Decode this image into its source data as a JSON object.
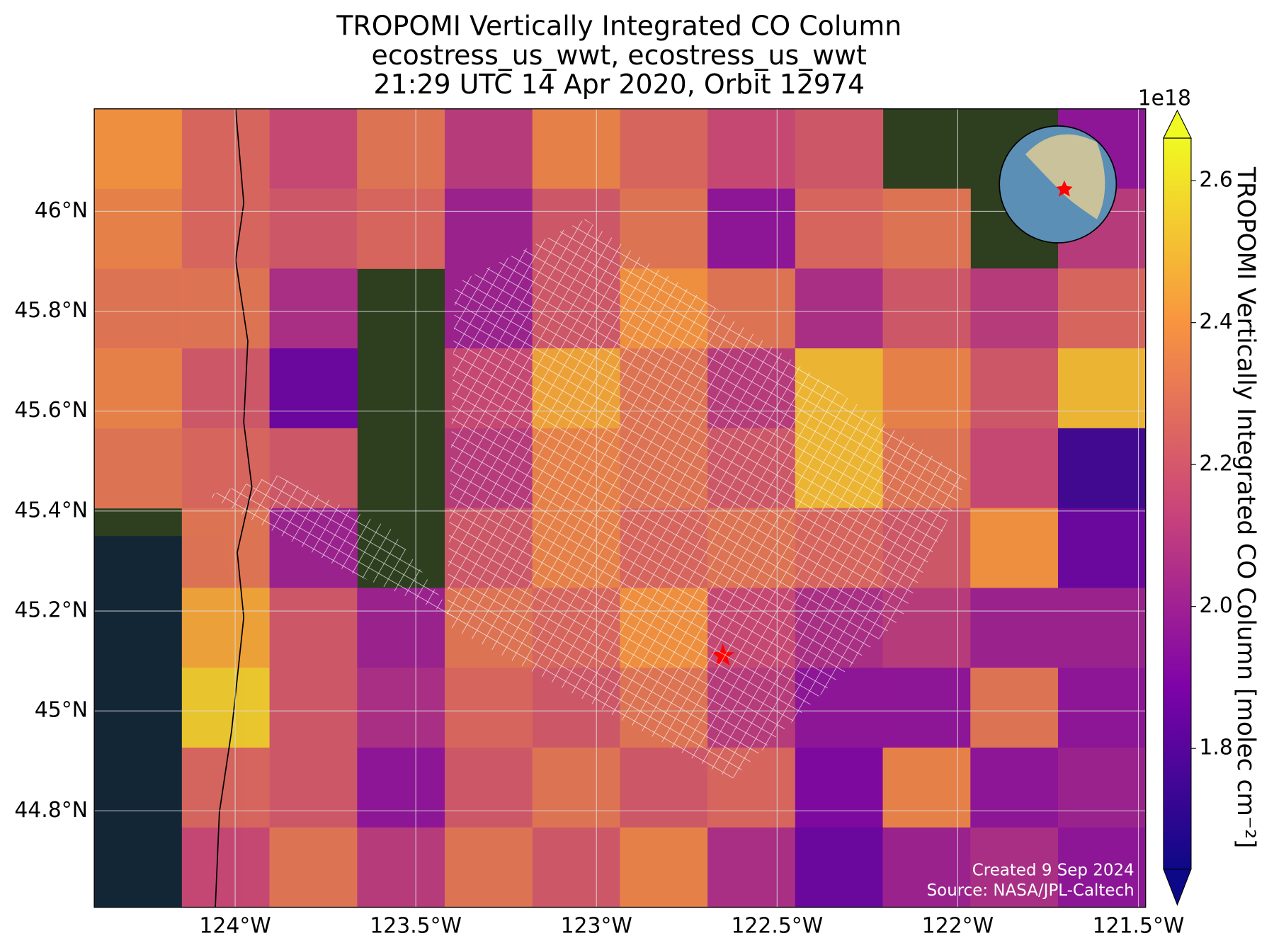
{
  "chart_data": {
    "type": "map",
    "title_lines": [
      "TROPOMI Vertically Integrated CO Column",
      "ecostress_us_wwt, ecostress_us_wwt",
      "21:29 UTC 14 Apr 2020, Orbit 12974"
    ],
    "xlim": [
      -124.39,
      -121.48
    ],
    "ylim": [
      44.607,
      46.205
    ],
    "xticks": [
      {
        "value": -124,
        "label": "124°W"
      },
      {
        "value": -123.5,
        "label": "123.5°W"
      },
      {
        "value": -123,
        "label": "123°W"
      },
      {
        "value": -122.5,
        "label": "122.5°W"
      },
      {
        "value": -122,
        "label": "122°W"
      },
      {
        "value": -121.5,
        "label": "121.5°W"
      }
    ],
    "yticks": [
      {
        "value": 46,
        "label": "46°N"
      },
      {
        "value": 45.8,
        "label": "45.8°N"
      },
      {
        "value": 45.6,
        "label": "45.6°N"
      },
      {
        "value": 45.4,
        "label": "45.4°N"
      },
      {
        "value": 45.2,
        "label": "45.2°N"
      },
      {
        "value": 45,
        "label": "45°N"
      },
      {
        "value": 44.8,
        "label": "44.8°N"
      }
    ],
    "grid": true,
    "cells": {
      "values": [
        [
          2.4,
          2.25,
          2.15,
          2.3,
          2.1,
          2.35,
          2.25,
          2.15,
          2.2,
          null,
          null,
          1.95
        ],
        [
          2.35,
          2.25,
          2.2,
          2.25,
          2.0,
          2.2,
          2.3,
          1.95,
          2.25,
          2.3,
          null,
          2.1
        ],
        [
          2.3,
          2.3,
          2.05,
          null,
          2.0,
          2.2,
          2.4,
          2.3,
          2.05,
          2.2,
          2.1,
          2.25
        ],
        [
          2.35,
          2.2,
          1.85,
          null,
          2.15,
          2.45,
          2.3,
          2.1,
          2.5,
          2.35,
          2.2,
          2.5
        ],
        [
          2.3,
          2.25,
          2.2,
          null,
          2.1,
          2.35,
          2.3,
          2.2,
          2.5,
          2.3,
          2.15,
          1.75
        ],
        [
          null,
          2.3,
          2.0,
          null,
          2.2,
          2.35,
          2.25,
          2.3,
          2.25,
          2.2,
          2.4,
          1.85
        ],
        [
          null,
          2.45,
          2.2,
          2.0,
          2.3,
          2.25,
          2.4,
          2.15,
          2.05,
          2.1,
          2.0,
          2.0
        ],
        [
          null,
          2.55,
          2.2,
          2.05,
          2.25,
          2.2,
          2.3,
          2.1,
          1.95,
          1.95,
          2.3,
          1.95
        ],
        [
          null,
          2.25,
          2.2,
          1.95,
          2.2,
          2.3,
          2.2,
          2.25,
          1.9,
          2.35,
          1.95,
          2.0
        ],
        [
          null,
          2.15,
          2.3,
          2.1,
          2.3,
          2.2,
          2.35,
          2.05,
          1.85,
          2.0,
          2.05,
          1.95
        ]
      ]
    },
    "site": {
      "lon": -122.65,
      "lat": 45.11,
      "color": "#ff0000"
    },
    "colorbar": {
      "clim": [
        1.63,
        2.66
      ],
      "ticks": [
        {
          "value": 1.8,
          "label": "1.8"
        },
        {
          "value": 2,
          "label": "2.0"
        },
        {
          "value": 2.2,
          "label": "2.2"
        },
        {
          "value": 2.4,
          "label": "2.4"
        },
        {
          "value": 2.6,
          "label": "2.6"
        }
      ],
      "offset_label": "1e18",
      "label": "TROPOMI Vertically Integrated CO Column [molec cm⁻²]"
    },
    "credits": [
      "Created 9 Sep 2024",
      "Source: NASA/JPL-Caltech"
    ]
  }
}
